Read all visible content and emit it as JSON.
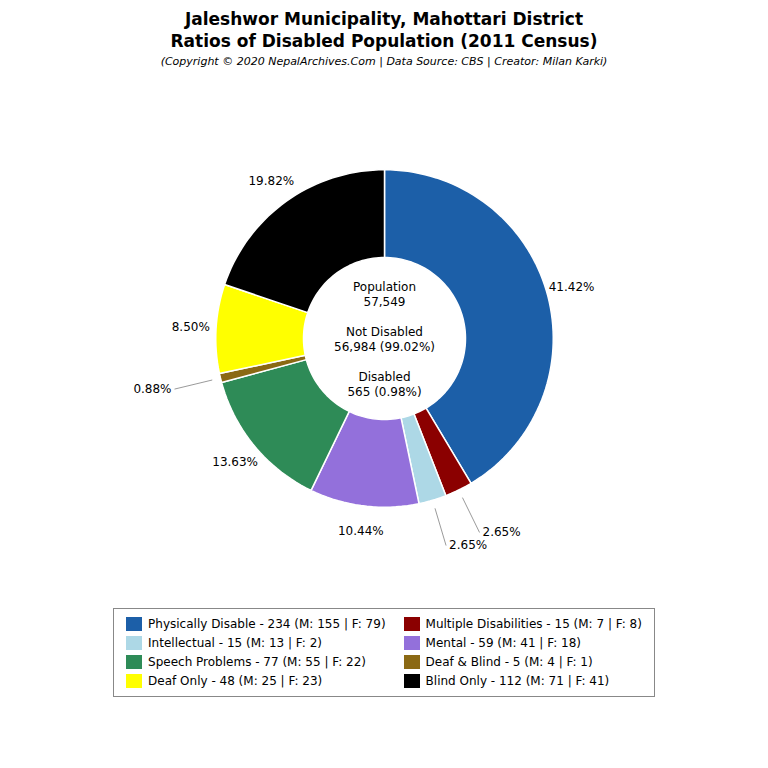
{
  "chart_data": {
    "type": "pie",
    "title": "Jaleshwor Municipality, Mahottari District\nRatios of Disabled Population (2011 Census)",
    "subtitle": "(Copyright © 2020 NepalArchives.Com | Data Source: CBS | Creator: Milan Karki)",
    "categories": [
      "Physically Disable - 234 (M: 155 | F: 79)",
      "Multiple Disabilities - 15 (M: 7 | F: 8)",
      "Intellectual - 15 (M: 13 | F: 2)",
      "Mental - 59 (M: 41 | F: 18)",
      "Speech Problems - 77 (M: 55 | F: 22)",
      "Deaf & Blind - 5 (M: 4 | F: 1)",
      "Deaf Only - 48 (M: 25 | F: 23)",
      "Blind Only - 112 (M: 71 | F: 41)"
    ],
    "values": [
      41.42,
      2.65,
      2.65,
      10.44,
      13.63,
      0.88,
      8.5,
      19.82
    ],
    "value_labels": [
      "41.42%",
      "2.65%",
      "2.65%",
      "10.44%",
      "13.63%",
      "0.88%",
      "8.50%",
      "19.82%"
    ],
    "colors": [
      "#1c5fa8",
      "#8b0000",
      "#add8e6",
      "#9370db",
      "#2e8b57",
      "#8b6914",
      "#ffff00",
      "#000000"
    ],
    "data_labels": true,
    "legend": "bottom",
    "annotations": [
      "Population\n57,549\n\nNot Disabled\n56,984 (99.02%)\n\nDisabled\n565 (0.98%)"
    ]
  }
}
